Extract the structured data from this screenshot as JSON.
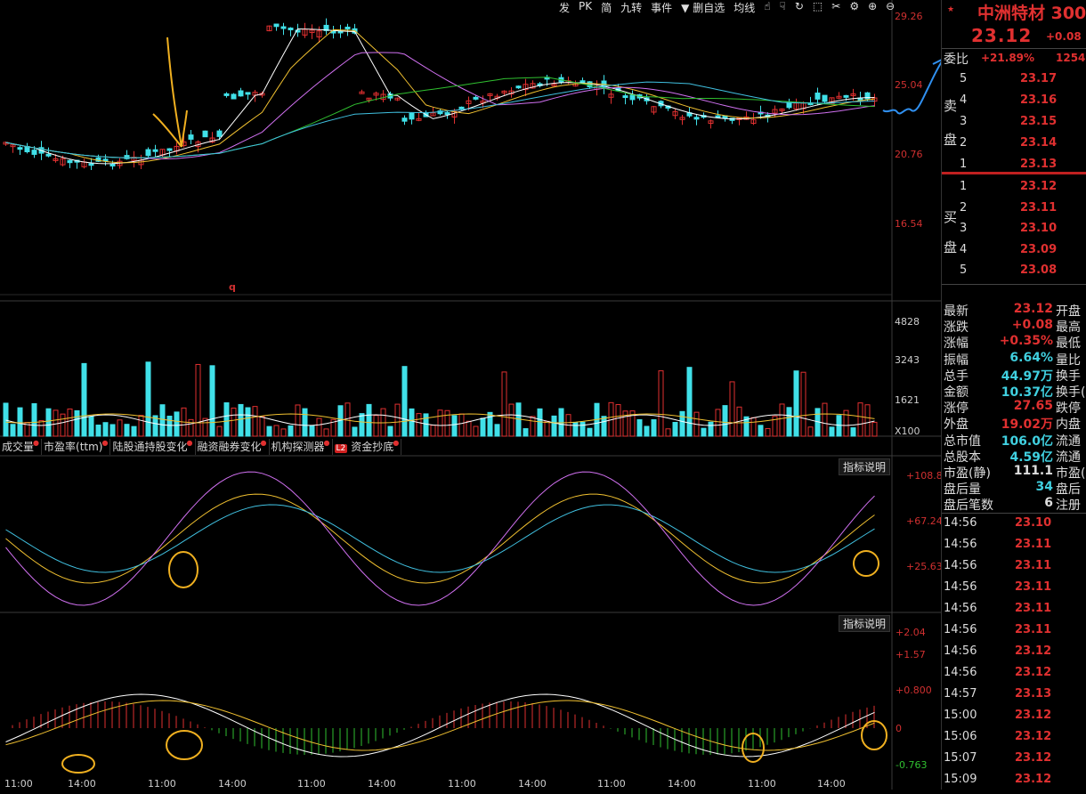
{
  "toolbar": [
    "发",
    "PK",
    "简",
    "九转",
    "事件",
    "▼ 删自选",
    "均线"
  ],
  "price_axis": [
    "29.26",
    "25.04",
    "20.76",
    "16.54"
  ],
  "vol_axis": [
    "4828",
    "3243",
    "1621",
    "X100"
  ],
  "kdj_axis": [
    "+108.8",
    "+67.24",
    "+25.63"
  ],
  "macd_axis": [
    "+2.04",
    "+1.57",
    "+0.800",
    "0",
    "-0.763"
  ],
  "marker_q": "q",
  "tabs": [
    "成交量",
    "市盈率(ttm)",
    "陆股通持股变化",
    "融资融券变化",
    "机构探测器",
    "资金抄底"
  ],
  "l2_badge": "L2",
  "explain": "指标说明",
  "x_labels": [
    "11:00",
    "14:00",
    "11:00",
    "14:00",
    "11:00",
    "14:00",
    "11:00",
    "14:00",
    "11:00",
    "14:00",
    "11:00",
    "14:00"
  ],
  "stock": {
    "name": "中洲特材 300",
    "price": "23.12",
    "change": "+0.08",
    "ratio_label": "委比",
    "ratio": "+21.89%",
    "ratio_vol": "1254"
  },
  "sell_side": [
    "卖",
    "盘"
  ],
  "buy_side": [
    "买",
    "盘"
  ],
  "sell": [
    {
      "n": "5",
      "p": "23.17"
    },
    {
      "n": "4",
      "p": "23.16"
    },
    {
      "n": "3",
      "p": "23.15"
    },
    {
      "n": "2",
      "p": "23.14"
    },
    {
      "n": "1",
      "p": "23.13"
    }
  ],
  "buy": [
    {
      "n": "1",
      "p": "23.12"
    },
    {
      "n": "2",
      "p": "23.11"
    },
    {
      "n": "3",
      "p": "23.10"
    },
    {
      "n": "4",
      "p": "23.09"
    },
    {
      "n": "5",
      "p": "23.08"
    }
  ],
  "stats": [
    {
      "k": "最新",
      "v": "23.12",
      "c": "#e03030",
      "k2": "开盘"
    },
    {
      "k": "涨跌",
      "v": "+0.08",
      "c": "#e03030",
      "k2": "最高"
    },
    {
      "k": "涨幅",
      "v": "+0.35%",
      "c": "#e03030",
      "k2": "最低"
    },
    {
      "k": "振幅",
      "v": "6.64%",
      "c": "#40d0e0",
      "k2": "量比"
    },
    {
      "k": "总手",
      "v": "44.97万",
      "c": "#40d0e0",
      "k2": "换手"
    },
    {
      "k": "金额",
      "v": "10.37亿",
      "c": "#40d0e0",
      "k2": "换手("
    },
    {
      "k": "涨停",
      "v": "27.65",
      "c": "#e03030",
      "k2": "跌停"
    },
    {
      "k": "外盘",
      "v": "19.02万",
      "c": "#e03030",
      "k2": "内盘"
    },
    {
      "k": "总市值",
      "v": "106.0亿",
      "c": "#40d0e0",
      "k2": "流通"
    },
    {
      "k": "总股本",
      "v": "4.59亿",
      "c": "#40d0e0",
      "k2": "流通"
    },
    {
      "k": "市盈(静)",
      "v": "111.1",
      "c": "#dddddd",
      "k2": "市盈("
    },
    {
      "k": "盘后量",
      "v": "34",
      "c": "#40d0e0",
      "k2": "盘后"
    },
    {
      "k": "盘后笔数",
      "v": "6",
      "c": "#dddddd",
      "k2": "注册"
    }
  ],
  "ticks": [
    {
      "t": "14:56",
      "p": "23.10"
    },
    {
      "t": "14:56",
      "p": "23.11"
    },
    {
      "t": "14:56",
      "p": "23.11"
    },
    {
      "t": "14:56",
      "p": "23.11"
    },
    {
      "t": "14:56",
      "p": "23.11"
    },
    {
      "t": "14:56",
      "p": "23.11"
    },
    {
      "t": "14:56",
      "p": "23.12"
    },
    {
      "t": "14:56",
      "p": "23.12"
    },
    {
      "t": "14:57",
      "p": "23.13"
    },
    {
      "t": "15:00",
      "p": "23.12"
    },
    {
      "t": "15:06",
      "p": "23.12"
    },
    {
      "t": "15:07",
      "p": "23.12"
    },
    {
      "t": "15:09",
      "p": "23.12"
    }
  ],
  "colors": {
    "up": "#e03030",
    "down": "#40e0e8",
    "ma5": "#ffffff",
    "ma10": "#f0c030",
    "ma20": "#d070f0",
    "ma60": "#30c030",
    "ma120": "#40c0e0",
    "annot_orange": "#f0b020",
    "annot_blue": "#3090f0"
  }
}
